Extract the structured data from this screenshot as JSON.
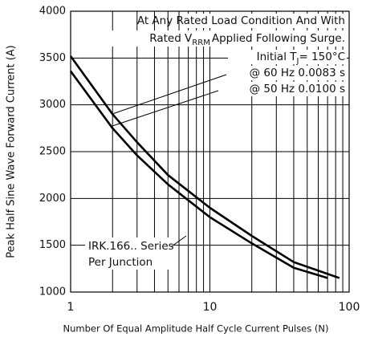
{
  "chart_data": {
    "type": "line",
    "ylabel": "Peak Half Sine Wave Forward Current (A)",
    "xlabel": "Number Of Equal Amplitude Half Cycle Current Pulses (N)",
    "log_x": true,
    "grid": true,
    "xlim": [
      1,
      100
    ],
    "xticks": [
      1,
      10,
      100
    ],
    "minor_xticks": [
      2,
      3,
      4,
      5,
      6,
      7,
      8,
      9,
      20,
      30,
      40,
      50,
      60,
      70,
      80,
      90
    ],
    "ylim": [
      1000,
      4000
    ],
    "yticks": [
      1000,
      1500,
      2000,
      2500,
      3000,
      3500,
      4000
    ],
    "series": [
      {
        "name": "@ 60 Hz 0.0083 s",
        "color": "#000000",
        "x": [
          1,
          2,
          3,
          5,
          10,
          20,
          40,
          85
        ],
        "values": [
          3520,
          2900,
          2600,
          2250,
          1900,
          1600,
          1320,
          1150
        ]
      },
      {
        "name": "@ 50 Hz 0.0100 s",
        "color": "#000000",
        "x": [
          1,
          2,
          3,
          5,
          10,
          20,
          40,
          70
        ],
        "values": [
          3360,
          2750,
          2460,
          2150,
          1800,
          1520,
          1260,
          1150
        ]
      }
    ],
    "annotations": {
      "line1": "At Any Rated Load Condition And With",
      "line2_a": "Rated V",
      "line2_sub": "RRM",
      "line2_b": "Applied Following Surge.",
      "line3_a": "Initial T",
      "line3_sub": "J",
      "line3_b": "= 150°C",
      "series_name": "IRK.166.. Series",
      "per": "Per Junction"
    }
  }
}
